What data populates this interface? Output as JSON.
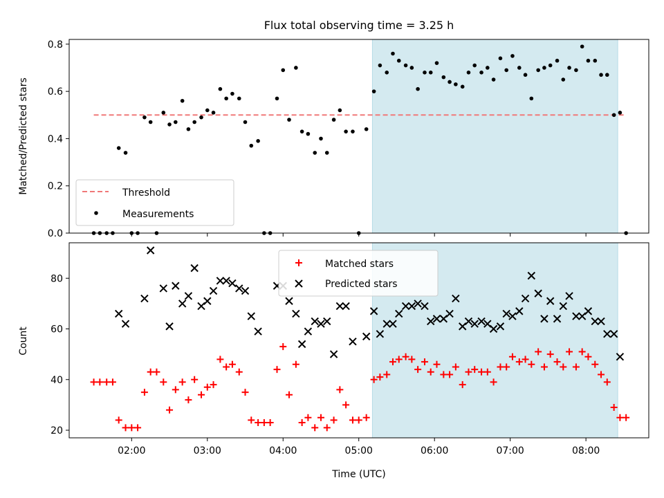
{
  "chart_data": [
    {
      "type": "scatter",
      "title": "Flux total observing time = 3.25 h",
      "xlabel": "",
      "ylabel": "Matched/Predicted stars",
      "ylim": [
        0,
        0.82
      ],
      "yticks": [
        "0.0",
        "0.2",
        "0.4",
        "0.6",
        "0.8"
      ],
      "xtick_values": [
        2,
        3,
        4,
        5,
        6,
        7,
        8
      ],
      "shaded_region": {
        "x": [
          5.18,
          8.42
        ],
        "color": "#d4eaf0"
      },
      "legend": {
        "position": "lower-left",
        "entries": [
          "Threshold",
          "Measurements"
        ]
      },
      "series": [
        {
          "name": "Threshold",
          "kind": "dashed-line",
          "color": "#f07878",
          "x": [
            1.5,
            8.5
          ],
          "y": [
            0.5,
            0.5
          ]
        },
        {
          "name": "Measurements",
          "kind": "dot",
          "color": "#000000",
          "x": [
            1.5,
            1.58,
            1.67,
            1.75,
            1.83,
            1.92,
            2.0,
            2.08,
            2.17,
            2.25,
            2.33,
            2.42,
            2.5,
            2.58,
            2.67,
            2.75,
            2.83,
            2.92,
            3.0,
            3.08,
            3.17,
            3.25,
            3.33,
            3.42,
            3.5,
            3.58,
            3.67,
            3.75,
            3.83,
            3.92,
            4.0,
            4.08,
            4.17,
            4.25,
            4.33,
            4.42,
            4.5,
            4.58,
            4.67,
            4.75,
            4.83,
            4.92,
            5.0,
            5.1,
            5.2,
            5.28,
            5.37,
            5.45,
            5.53,
            5.62,
            5.7,
            5.78,
            5.87,
            5.95,
            6.03,
            6.12,
            6.2,
            6.28,
            6.37,
            6.45,
            6.53,
            6.62,
            6.7,
            6.78,
            6.87,
            6.95,
            7.03,
            7.12,
            7.2,
            7.28,
            7.37,
            7.45,
            7.53,
            7.62,
            7.7,
            7.78,
            7.87,
            7.95,
            8.03,
            8.12,
            8.2,
            8.28,
            8.37,
            8.45,
            8.53
          ],
          "y": [
            0.0,
            0.0,
            0.0,
            0.0,
            0.36,
            0.34,
            0.0,
            0.0,
            0.49,
            0.47,
            0.0,
            0.51,
            0.46,
            0.47,
            0.56,
            0.44,
            0.47,
            0.49,
            0.52,
            0.51,
            0.61,
            0.57,
            0.59,
            0.57,
            0.47,
            0.37,
            0.39,
            0.0,
            0.0,
            0.57,
            0.69,
            0.48,
            0.7,
            0.43,
            0.42,
            0.34,
            0.4,
            0.34,
            0.48,
            0.52,
            0.43,
            0.43,
            0.0,
            0.44,
            0.6,
            0.71,
            0.68,
            0.76,
            0.73,
            0.71,
            0.7,
            0.61,
            0.68,
            0.68,
            0.72,
            0.66,
            0.64,
            0.63,
            0.62,
            0.68,
            0.71,
            0.68,
            0.7,
            0.65,
            0.74,
            0.69,
            0.75,
            0.7,
            0.67,
            0.57,
            0.69,
            0.7,
            0.71,
            0.73,
            0.65,
            0.7,
            0.69,
            0.79,
            0.73,
            0.73,
            0.67,
            0.67,
            0.5,
            0.51,
            0.0
          ]
        }
      ]
    },
    {
      "type": "scatter",
      "title": "",
      "xlabel": "Time (UTC)",
      "ylabel": "Count",
      "ylim": [
        17,
        94
      ],
      "yticks": [
        "20",
        "40",
        "60",
        "80"
      ],
      "xtick_labels": [
        "02:00",
        "03:00",
        "04:00",
        "05:00",
        "06:00",
        "07:00",
        "08:00"
      ],
      "xtick_values": [
        2,
        3,
        4,
        5,
        6,
        7,
        8
      ],
      "shaded_region": {
        "x": [
          5.18,
          8.42
        ],
        "color": "#d4eaf0"
      },
      "legend": {
        "position": "top-center",
        "entries": [
          "Matched stars",
          "Predicted stars"
        ]
      },
      "series": [
        {
          "name": "Matched stars",
          "kind": "plus",
          "color": "#ff0000",
          "x": [
            1.5,
            1.58,
            1.67,
            1.75,
            1.83,
            1.92,
            2.0,
            2.08,
            2.17,
            2.25,
            2.33,
            2.42,
            2.5,
            2.58,
            2.67,
            2.75,
            2.83,
            2.92,
            3.0,
            3.08,
            3.17,
            3.25,
            3.33,
            3.42,
            3.5,
            3.58,
            3.67,
            3.75,
            3.83,
            3.92,
            4.0,
            4.08,
            4.17,
            4.25,
            4.33,
            4.42,
            4.5,
            4.58,
            4.67,
            4.75,
            4.83,
            4.92,
            5.0,
            5.1,
            5.2,
            5.28,
            5.37,
            5.45,
            5.53,
            5.62,
            5.7,
            5.78,
            5.87,
            5.95,
            6.03,
            6.12,
            6.2,
            6.28,
            6.37,
            6.45,
            6.53,
            6.62,
            6.7,
            6.78,
            6.87,
            6.95,
            7.03,
            7.12,
            7.2,
            7.28,
            7.37,
            7.45,
            7.53,
            7.62,
            7.7,
            7.78,
            7.87,
            7.95,
            8.03,
            8.12,
            8.2,
            8.28,
            8.37,
            8.45,
            8.53
          ],
          "y": [
            39,
            39,
            39,
            39,
            24,
            21,
            21,
            21,
            35,
            43,
            43,
            39,
            28,
            36,
            39,
            32,
            40,
            34,
            37,
            38,
            48,
            45,
            46,
            43,
            35,
            24,
            23,
            23,
            23,
            44,
            53,
            34,
            46,
            23,
            25,
            21,
            25,
            21,
            24,
            36,
            30,
            24,
            24,
            25,
            40,
            41,
            42,
            47,
            48,
            49,
            48,
            44,
            47,
            43,
            46,
            42,
            42,
            45,
            38,
            43,
            44,
            43,
            43,
            39,
            45,
            45,
            49,
            47,
            48,
            46,
            51,
            45,
            50,
            47,
            45,
            51,
            45,
            51,
            49,
            46,
            42,
            39,
            29,
            25,
            25
          ]
        },
        {
          "name": "Predicted stars",
          "kind": "x",
          "color": "#000000",
          "x": [
            1.83,
            1.92,
            2.17,
            2.25,
            2.42,
            2.5,
            2.58,
            2.67,
            2.75,
            2.83,
            2.92,
            3.0,
            3.08,
            3.17,
            3.25,
            3.33,
            3.42,
            3.5,
            3.58,
            3.67,
            3.92,
            4.0,
            4.08,
            4.17,
            4.25,
            4.33,
            4.42,
            4.5,
            4.58,
            4.67,
            4.75,
            4.83,
            4.92,
            5.1,
            5.2,
            5.28,
            5.37,
            5.45,
            5.53,
            5.62,
            5.7,
            5.78,
            5.87,
            5.95,
            6.03,
            6.12,
            6.2,
            6.28,
            6.37,
            6.45,
            6.53,
            6.62,
            6.7,
            6.78,
            6.87,
            6.95,
            7.03,
            7.12,
            7.2,
            7.28,
            7.37,
            7.45,
            7.53,
            7.62,
            7.7,
            7.78,
            7.87,
            7.95,
            8.03,
            8.12,
            8.2,
            8.28,
            8.37,
            8.45
          ],
          "y": [
            66,
            62,
            72,
            91,
            76,
            61,
            77,
            70,
            73,
            84,
            69,
            71,
            75,
            79,
            79,
            78,
            76,
            75,
            65,
            59,
            77,
            77,
            71,
            66,
            54,
            59,
            63,
            62,
            63,
            50,
            69,
            69,
            55,
            57,
            67,
            58,
            62,
            62,
            66,
            69,
            69,
            70,
            69,
            63,
            64,
            64,
            66,
            72,
            61,
            63,
            62,
            63,
            62,
            60,
            61,
            66,
            65,
            67,
            72,
            81,
            74,
            64,
            71,
            64,
            69,
            73,
            65,
            65,
            67,
            63,
            63,
            58,
            58,
            49
          ]
        }
      ]
    }
  ]
}
